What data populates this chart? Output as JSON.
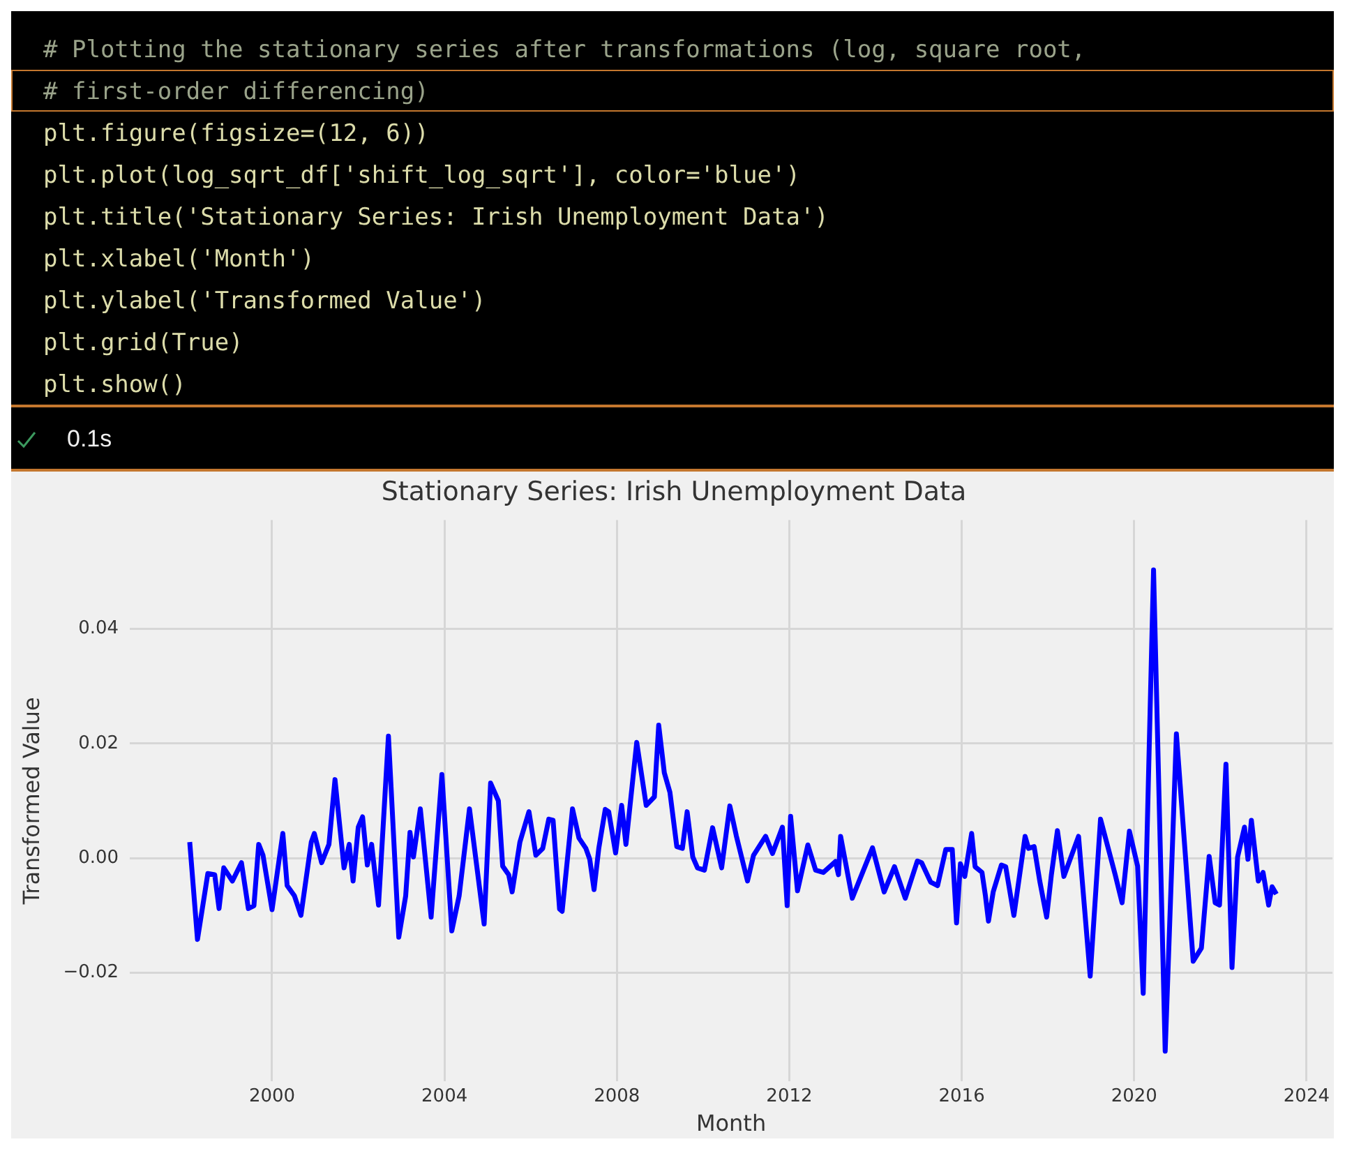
{
  "chart_data": {
    "type": "line",
    "title": "Stationary Series: Irish Unemployment Data",
    "xlabel": "Month",
    "ylabel": "Transformed Value",
    "annotations": [
      "# Plotting the stationary series after transformations (log, square root,",
      "# first-order differencing)",
      "plt.figure(figsize=(12, 6))",
      "plt.plot(log_sqrt_df['shift_log_sqrt'], color='blue')",
      "plt.title('Stationary Series: Irish Unemployment Data')",
      "plt.xlabel('Month')",
      "plt.ylabel('Transformed Value')",
      "plt.grid(True)",
      "plt.show()",
      "0.1s"
    ],
    "x": [
      1998.09,
      1998.27,
      1998.51,
      1998.67,
      1998.77,
      1998.88,
      1999.08,
      1999.29,
      1999.45,
      1999.58,
      1999.69,
      1999.79,
      2000.0,
      2000.25,
      2000.35,
      2000.52,
      2000.67,
      2000.91,
      2000.98,
      2001.15,
      2001.32,
      2001.46,
      2001.67,
      2001.79,
      2001.88,
      2002.0,
      2002.1,
      2002.21,
      2002.31,
      2002.47,
      2002.7,
      2002.94,
      2003.1,
      2003.2,
      2003.28,
      2003.44,
      2003.69,
      2003.94,
      2004.17,
      2004.34,
      2004.58,
      2004.71,
      2004.92,
      2005.07,
      2005.25,
      2005.35,
      2005.49,
      2005.57,
      2005.75,
      2005.96,
      2006.12,
      2006.28,
      2006.42,
      2006.52,
      2006.67,
      2006.73,
      2006.97,
      2007.12,
      2007.28,
      2007.37,
      2007.47,
      2007.58,
      2007.73,
      2007.81,
      2007.97,
      2008.11,
      2008.21,
      2008.46,
      2008.68,
      2008.87,
      2008.97,
      2009.1,
      2009.23,
      2009.39,
      2009.52,
      2009.63,
      2009.76,
      2009.87,
      2010.03,
      2010.22,
      2010.43,
      2010.62,
      2010.77,
      2011.03,
      2011.17,
      2011.45,
      2011.61,
      2011.84,
      2011.95,
      2012.03,
      2012.19,
      2012.43,
      2012.61,
      2012.79,
      2013.07,
      2013.14,
      2013.19,
      2013.46,
      2013.7,
      2013.93,
      2014.2,
      2014.44,
      2014.69,
      2014.97,
      2015.07,
      2015.28,
      2015.44,
      2015.63,
      2015.78,
      2015.88,
      2015.97,
      2016.07,
      2016.23,
      2016.31,
      2016.47,
      2016.55,
      2016.62,
      2016.73,
      2016.92,
      2017.02,
      2017.21,
      2017.47,
      2017.55,
      2017.68,
      2017.81,
      2017.97,
      2018.08,
      2018.22,
      2018.37,
      2018.71,
      2018.98,
      2019.22,
      2019.56,
      2019.72,
      2019.89,
      2020.08,
      2020.21,
      2020.45,
      2020.72,
      2020.98,
      2021.37,
      2021.56,
      2021.74,
      2021.88,
      2021.98,
      2022.13,
      2022.27,
      2022.4,
      2022.56,
      2022.64,
      2022.72,
      2022.88,
      2022.99,
      2023.12,
      2023.2,
      2023.3
    ],
    "values": [
      0.0028,
      -0.0142,
      -0.0027,
      -0.0029,
      -0.0088,
      -0.0017,
      -0.004,
      -0.0008,
      -0.0088,
      -0.0083,
      0.0024,
      0.0005,
      -0.009,
      0.0043,
      -0.0048,
      -0.0066,
      -0.01,
      0.0028,
      0.0043,
      -0.0008,
      0.0024,
      0.0137,
      -0.0017,
      0.0024,
      -0.004,
      0.0054,
      0.0072,
      -0.0012,
      0.0024,
      -0.0082,
      0.0213,
      -0.0138,
      -0.0066,
      0.0045,
      0.0002,
      0.0086,
      -0.0103,
      0.0146,
      -0.0127,
      -0.0066,
      0.0086,
      0.0009,
      -0.0115,
      0.0131,
      0.01,
      -0.0014,
      -0.0029,
      -0.0059,
      0.0028,
      0.0081,
      0.0005,
      0.0017,
      0.0068,
      0.0066,
      -0.0089,
      -0.0093,
      0.0086,
      0.0035,
      0.0017,
      -0.0002,
      -0.0055,
      0.0017,
      0.0085,
      0.0081,
      0.0009,
      0.0092,
      0.0024,
      0.0202,
      0.0092,
      0.0107,
      0.0232,
      0.0149,
      0.0115,
      0.002,
      0.0017,
      0.0081,
      0.0002,
      -0.0017,
      -0.0021,
      0.0053,
      -0.0017,
      0.0091,
      0.0039,
      -0.004,
      0.0005,
      0.0038,
      0.0008,
      0.0054,
      -0.0083,
      0.0073,
      -0.0057,
      0.0023,
      -0.0021,
      -0.0025,
      -0.0006,
      -0.0029,
      0.0038,
      -0.007,
      -0.0025,
      0.0018,
      -0.0059,
      -0.0015,
      -0.007,
      -0.0005,
      -0.0008,
      -0.0042,
      -0.0048,
      0.0015,
      0.0015,
      -0.0113,
      -0.001,
      -0.0032,
      0.0043,
      -0.0015,
      -0.0025,
      -0.0066,
      -0.011,
      -0.0059,
      -0.0012,
      -0.0015,
      -0.01,
      0.0038,
      0.0017,
      0.002,
      -0.004,
      -0.0103,
      -0.0029,
      0.0048,
      -0.0032,
      0.0038,
      -0.0206,
      0.0068,
      -0.0029,
      -0.0078,
      0.0047,
      -0.0014,
      -0.0236,
      0.0503,
      -0.0337,
      0.0217,
      -0.018,
      -0.0157,
      0.0003,
      -0.0078,
      -0.0082,
      0.0164,
      -0.0191,
      0.0002,
      0.0054,
      -0.0002,
      0.0066,
      -0.004,
      -0.0025,
      -0.0082,
      -0.005,
      -0.0063
    ],
    "color": "#0000ff",
    "line_style": "solid",
    "grid": true,
    "xlim": [
      1996.7,
      2024.6
    ],
    "xticks": [
      2000,
      2004,
      2008,
      2012,
      2016,
      2020,
      2024
    ],
    "ylim": [
      -0.039,
      0.059
    ],
    "yticks": [
      {
        "value": -0.02,
        "label": "−0.02"
      },
      {
        "value": 0,
        "label": "0.00"
      },
      {
        "value": 0.02,
        "label": "0.02"
      },
      {
        "value": 0.04,
        "label": "0.04"
      }
    ]
  }
}
